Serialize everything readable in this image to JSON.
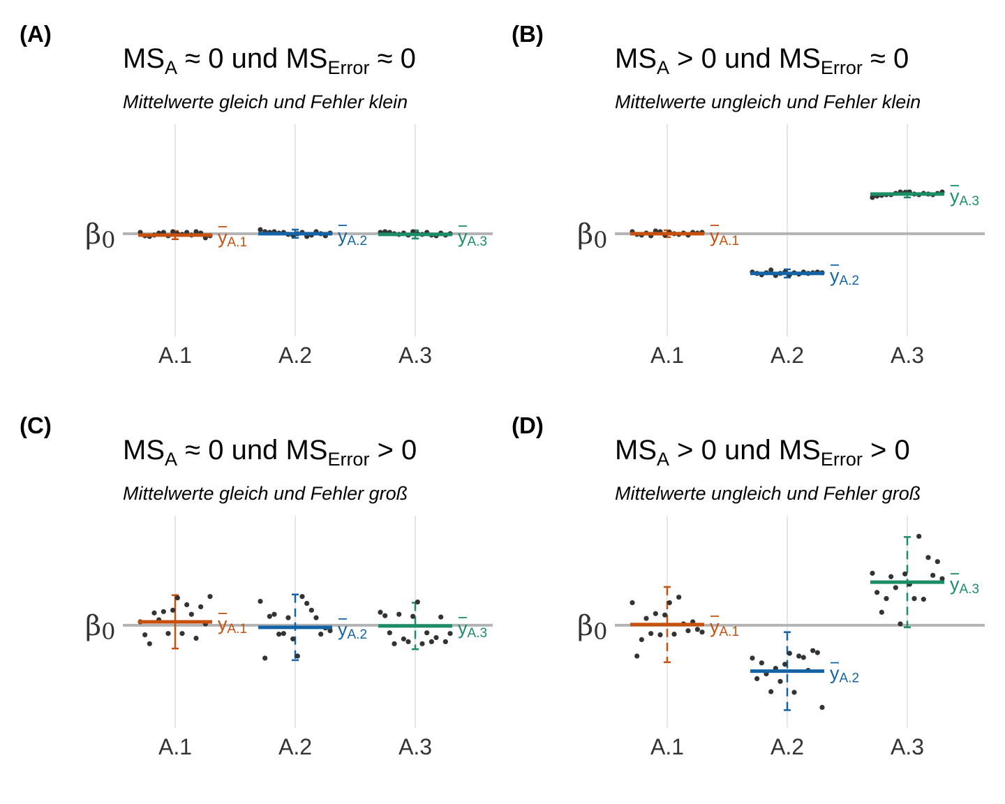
{
  "chart_data": [
    {
      "type": "scatter",
      "tag": "(A)",
      "title": {
        "ms_a": "MS",
        "ms_a_sub": "A",
        "rel_a": "≈ 0 und",
        "ms_e": "MS",
        "ms_e_sub": "Error",
        "rel_e": "≈ 0"
      },
      "subtitle": "Mittelwerte gleich und Fehler klein",
      "y_label": "β",
      "y_label_sub": "0",
      "categories": [
        "A.1",
        "A.2",
        "A.3"
      ],
      "beta0": 0,
      "ylim": [
        -1.5,
        1.6
      ],
      "groups": [
        {
          "name": "A.1",
          "color": "#c8500e",
          "mean": -0.02,
          "err": 0.06,
          "dashed": false,
          "mean_label": "y",
          "mean_label_sub": "A.1",
          "points": [
            0.02,
            -0.03,
            -0.04,
            -0.02,
            0.01,
            0.02,
            -0.03,
            0.03,
            0.0,
            -0.01,
            0.02,
            -0.02,
            0.03,
            0.01,
            -0.06,
            -0.03
          ]
        },
        {
          "name": "A.2",
          "color": "#1463a6",
          "mean": 0.0,
          "err": 0.06,
          "dashed": false,
          "mean_label": "y",
          "mean_label_sub": "A.2",
          "points": [
            0.06,
            0.03,
            0.02,
            0.03,
            0.01,
            0.02,
            -0.01,
            -0.02,
            0.0,
            0.02,
            -0.04,
            -0.02,
            0.03,
            0.0,
            -0.03,
            0.01
          ]
        },
        {
          "name": "A.3",
          "color": "#1b8e66",
          "mean": -0.01,
          "err": 0.06,
          "dashed": false,
          "mean_label": "y",
          "mean_label_sub": "A.3",
          "points": [
            0.02,
            0.03,
            0.02,
            0.0,
            -0.01,
            0.01,
            -0.02,
            0.03,
            0.0,
            -0.01,
            0.02,
            -0.02,
            -0.03,
            0.01,
            -0.02,
            0.0
          ]
        }
      ]
    },
    {
      "type": "scatter",
      "tag": "(B)",
      "title": {
        "ms_a": "MS",
        "ms_a_sub": "A",
        "rel_a": "> 0 und",
        "ms_e": "MS",
        "ms_e_sub": "Error",
        "rel_e": "≈ 0"
      },
      "subtitle": "Mittelwerte ungleich und Fehler klein",
      "y_label": "β",
      "y_label_sub": "0",
      "categories": [
        "A.1",
        "A.2",
        "A.3"
      ],
      "beta0": 0,
      "ylim": [
        -1.5,
        1.6
      ],
      "groups": [
        {
          "name": "A.1",
          "color": "#c8500e",
          "mean": 0.0,
          "err": 0.05,
          "dashed": false,
          "mean_label": "y",
          "mean_label_sub": "A.1",
          "points": [
            0.03,
            -0.01,
            -0.02,
            0.01,
            -0.03,
            0.04,
            0.03,
            -0.02,
            0.02,
            0.0,
            -0.01,
            0.01,
            -0.02,
            0.02,
            0.01,
            0.02
          ]
        },
        {
          "name": "A.2",
          "color": "#1463a6",
          "mean": -0.58,
          "err": 0.06,
          "dashed": false,
          "mean_label": "y",
          "mean_label_sub": "A.2",
          "points": [
            -0.56,
            -0.58,
            -0.6,
            -0.57,
            -0.53,
            -0.61,
            -0.58,
            -0.56,
            -0.6,
            -0.57,
            -0.59,
            -0.56,
            -0.58,
            -0.57,
            -0.56,
            -0.57
          ]
        },
        {
          "name": "A.3",
          "color": "#1b8e66",
          "mean": 0.58,
          "err": 0.05,
          "dashed": false,
          "mean_label": "y",
          "mean_label_sub": "A.3",
          "points": [
            0.53,
            0.55,
            0.56,
            0.57,
            0.57,
            0.59,
            0.61,
            0.6,
            0.61,
            0.58,
            0.57,
            0.59,
            0.58,
            0.57,
            0.59,
            0.61
          ]
        }
      ]
    },
    {
      "type": "scatter",
      "tag": "(C)",
      "title": {
        "ms_a": "MS",
        "ms_a_sub": "A",
        "rel_a": "≈ 0 und",
        "ms_e": "MS",
        "ms_e_sub": "Error",
        "rel_e": "> 0"
      },
      "subtitle": "Mittelwerte gleich und Fehler groß",
      "y_label": "β",
      "y_label_sub": "0",
      "categories": [
        "A.1",
        "A.2",
        "A.3"
      ],
      "beta0": 0,
      "ylim": [
        -1.5,
        1.6
      ],
      "groups": [
        {
          "name": "A.1",
          "color": "#c8500e",
          "mean": 0.05,
          "err": 0.39,
          "dashed": false,
          "mean_label": "y",
          "mean_label_sub": "A.1",
          "points": [
            0.05,
            -0.14,
            -0.27,
            0.18,
            0.08,
            0.2,
            -0.12,
            0.22,
            0.4,
            -0.12,
            0.3,
            0.16,
            -0.19,
            0.27,
            0.02,
            0.42
          ]
        },
        {
          "name": "A.2",
          "color": "#1463a6",
          "mean": -0.03,
          "err": 0.48,
          "dashed": false,
          "dashed_err": true,
          "mean_label": "y",
          "mean_label_sub": "A.2",
          "points": [
            0.35,
            -0.48,
            0.13,
            0.16,
            -0.13,
            -0.12,
            0.11,
            -0.2,
            -0.45,
            0.42,
            0.32,
            0.22,
            0.11,
            -0.13,
            -0.04,
            -0.08
          ]
        },
        {
          "name": "A.3",
          "color": "#1b8e66",
          "mean": -0.01,
          "err": 0.34,
          "dashed": false,
          "dashed_err": true,
          "mean_label": "y",
          "mean_label_sub": "A.3",
          "points": [
            0.19,
            0.14,
            -0.11,
            -0.27,
            0.16,
            -0.2,
            -0.24,
            0.13,
            0.34,
            -0.27,
            -0.11,
            -0.24,
            -0.18,
            0.12,
            -0.24,
            -0.12
          ]
        }
      ]
    },
    {
      "type": "scatter",
      "tag": "(D)",
      "title": {
        "ms_a": "MS",
        "ms_a_sub": "A",
        "rel_a": "> 0 und",
        "ms_e": "MS",
        "ms_e_sub": "Error",
        "rel_e": "> 0"
      },
      "subtitle": "Mittelwerte ungleich und Fehler groß",
      "y_label": "β",
      "y_label_sub": "0",
      "categories": [
        "A.1",
        "A.2",
        "A.3"
      ],
      "beta0": 0,
      "ylim": [
        -1.5,
        1.6
      ],
      "groups": [
        {
          "name": "A.1",
          "color": "#c8500e",
          "mean": 0.01,
          "err": 0.55,
          "dashed": false,
          "dashed_err": true,
          "mean_label": "y",
          "mean_label_sub": "A.1",
          "points": [
            0.33,
            -0.45,
            -0.21,
            0.1,
            -0.12,
            0.17,
            -0.14,
            0.15,
            0.33,
            -0.13,
            0.41,
            0.02,
            -0.08,
            0.05,
            -0.06,
            -0.1
          ]
        },
        {
          "name": "A.2",
          "color": "#1463a6",
          "mean": -0.67,
          "err": 0.57,
          "dashed": false,
          "dashed_err": true,
          "mean_label": "y",
          "mean_label_sub": "A.2",
          "points": [
            -0.48,
            -0.78,
            -0.55,
            -0.71,
            -0.97,
            -0.63,
            -0.82,
            -0.57,
            -0.41,
            -0.98,
            -0.45,
            -0.47,
            -0.66,
            -0.37,
            -0.4,
            -1.2
          ]
        },
        {
          "name": "A.3",
          "color": "#1b8e66",
          "mean": 0.63,
          "err": 0.66,
          "dashed": false,
          "dashed_err": true,
          "mean_label": "y",
          "mean_label_sub": "A.3",
          "points": [
            0.76,
            0.48,
            0.19,
            0.39,
            0.71,
            0.55,
            0.02,
            0.75,
            0.6,
            0.39,
            1.3,
            0.38,
            0.99,
            0.73,
            0.93,
            0.68
          ]
        }
      ]
    }
  ]
}
